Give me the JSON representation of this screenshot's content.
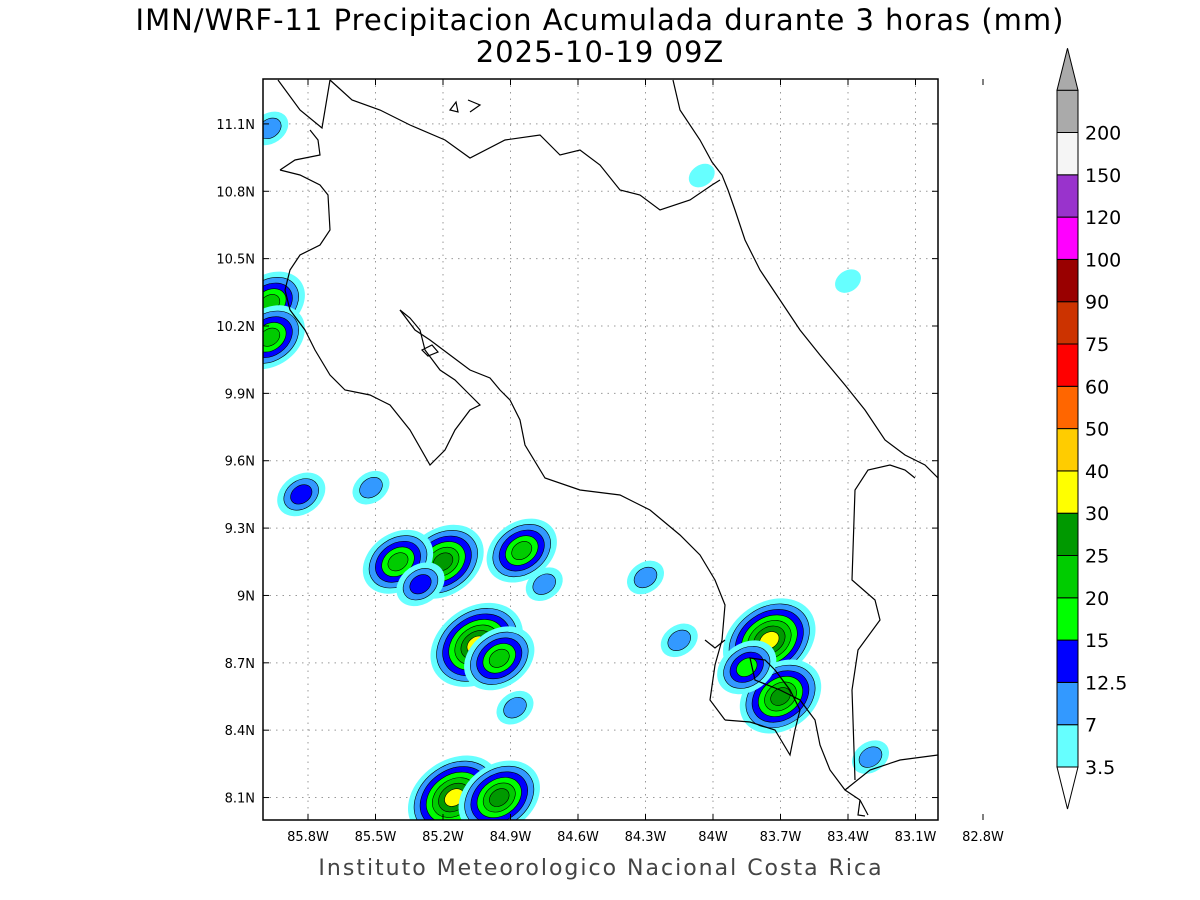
{
  "title": {
    "line1": "IMN/WRF-11 Precipitacion Acumulada durante 3 horas (mm)",
    "line2": "2025-10-19 09Z"
  },
  "footer": "Instituto Meteorologico Nacional Costa Rica",
  "map": {
    "lon_range": [
      -86.0,
      -83.0
    ],
    "lat_range": [
      8.0,
      11.3
    ],
    "grid": true,
    "lon_ticks": [
      {
        "value": -85.8,
        "label": "85.8W"
      },
      {
        "value": -85.5,
        "label": "85.5W"
      },
      {
        "value": -85.2,
        "label": "85.2W"
      },
      {
        "value": -84.9,
        "label": "84.9W"
      },
      {
        "value": -84.6,
        "label": "84.6W"
      },
      {
        "value": -84.3,
        "label": "84.3W"
      },
      {
        "value": -84.0,
        "label": "84W"
      },
      {
        "value": -83.7,
        "label": "83.7W"
      },
      {
        "value": -83.4,
        "label": "83.4W"
      },
      {
        "value": -83.1,
        "label": "83.1W"
      },
      {
        "value": -82.8,
        "label": "82.8W"
      }
    ],
    "lat_ticks": [
      {
        "value": 11.1,
        "label": "11.1N"
      },
      {
        "value": 10.8,
        "label": "10.8N"
      },
      {
        "value": 10.5,
        "label": "10.5N"
      },
      {
        "value": 10.2,
        "label": "10.2N"
      },
      {
        "value": 9.9,
        "label": "9.9N"
      },
      {
        "value": 9.6,
        "label": "9.6N"
      },
      {
        "value": 9.3,
        "label": "9.3N"
      },
      {
        "value": 9.0,
        "label": "9N"
      },
      {
        "value": 8.7,
        "label": "8.7N"
      },
      {
        "value": 8.4,
        "label": "8.4N"
      },
      {
        "value": 8.1,
        "label": "8.1N"
      }
    ]
  },
  "colorbar": {
    "levels": [
      {
        "label": "3.5",
        "color": "#66ffff"
      },
      {
        "label": "7",
        "color": "#3399ff"
      },
      {
        "label": "12.5",
        "color": "#0000ff"
      },
      {
        "label": "15",
        "color": "#00ff00"
      },
      {
        "label": "20",
        "color": "#00cc00"
      },
      {
        "label": "25",
        "color": "#009900"
      },
      {
        "label": "30",
        "color": "#ffff00"
      },
      {
        "label": "40",
        "color": "#ffcc00"
      },
      {
        "label": "50",
        "color": "#ff6600"
      },
      {
        "label": "60",
        "color": "#ff0000"
      },
      {
        "label": "75",
        "color": "#cc3300"
      },
      {
        "label": "90",
        "color": "#990000"
      },
      {
        "label": "100",
        "color": "#ff00ff"
      },
      {
        "label": "120",
        "color": "#9933cc"
      },
      {
        "label": "150",
        "color": "#f5f5f5"
      },
      {
        "label": "200",
        "color": "#aaaaaa"
      }
    ],
    "under_color": "#ffffff",
    "over_color": "#aaaaaa"
  },
  "precip_cells": [
    {
      "lon": -85.2,
      "lat": 9.15,
      "value": 25
    },
    {
      "lon": -85.4,
      "lat": 9.15,
      "value": 20
    },
    {
      "lon": -85.05,
      "lat": 8.78,
      "value": 35
    },
    {
      "lon": -84.95,
      "lat": 8.72,
      "value": 20
    },
    {
      "lon": -85.15,
      "lat": 8.1,
      "value": 30
    },
    {
      "lon": -84.95,
      "lat": 8.1,
      "value": 25
    },
    {
      "lon": -83.75,
      "lat": 8.8,
      "value": 30
    },
    {
      "lon": -83.7,
      "lat": 8.55,
      "value": 25
    },
    {
      "lon": -83.85,
      "lat": 8.68,
      "value": 15
    },
    {
      "lon": -85.97,
      "lat": 10.3,
      "value": 20
    },
    {
      "lon": -85.97,
      "lat": 10.15,
      "value": 20
    },
    {
      "lon": -85.83,
      "lat": 9.45,
      "value": 12.5
    },
    {
      "lon": -85.52,
      "lat": 9.48,
      "value": 7
    },
    {
      "lon": -84.85,
      "lat": 9.2,
      "value": 20
    },
    {
      "lon": -84.75,
      "lat": 9.05,
      "value": 7
    },
    {
      "lon": -85.3,
      "lat": 9.05,
      "value": 12.5
    },
    {
      "lon": -84.88,
      "lat": 8.5,
      "value": 7
    },
    {
      "lon": -85.97,
      "lat": 11.08,
      "value": 7
    },
    {
      "lon": -84.05,
      "lat": 10.87,
      "value": 3.5
    },
    {
      "lon": -83.4,
      "lat": 10.4,
      "value": 3.5
    },
    {
      "lon": -84.3,
      "lat": 9.08,
      "value": 7
    },
    {
      "lon": -84.15,
      "lat": 8.8,
      "value": 7
    },
    {
      "lon": -83.3,
      "lat": 8.28,
      "value": 7
    }
  ]
}
